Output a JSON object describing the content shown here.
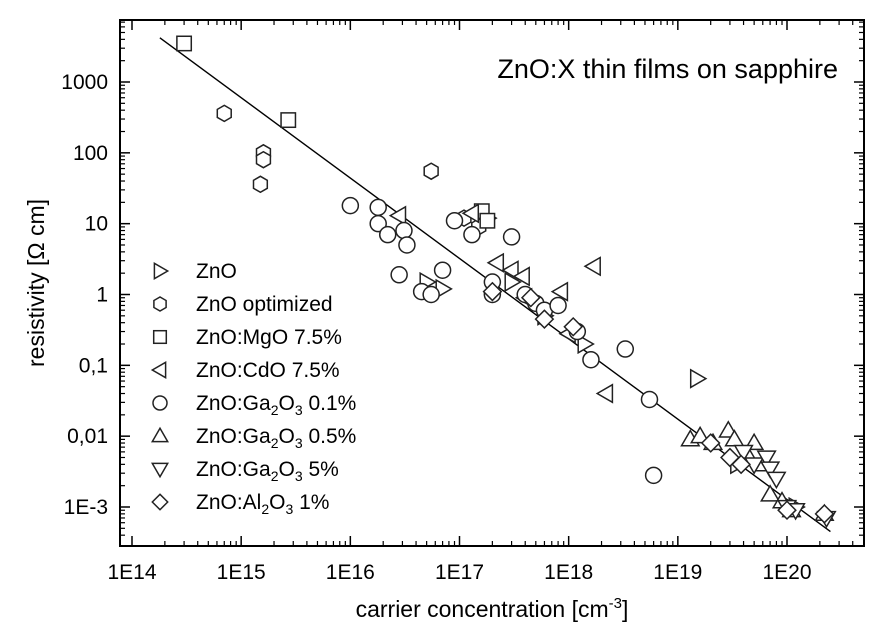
{
  "chart_data": {
    "type": "scatter",
    "title": "ZnO:X thin films on sapphire",
    "xlabel": "carrier concentration [cm",
    "xlabel_sup": "-3",
    "xlabel_end": "]",
    "ylabel": "resistivity [Ω cm]",
    "x_scale": "log",
    "y_scale": "log",
    "xlim": [
      100000000000000.0,
      3.5e+20
    ],
    "ylim": [
      0.0004,
      5000
    ],
    "x_ticks": [
      {
        "value": 100000000000000.0,
        "label": "1E14"
      },
      {
        "value": 1000000000000000.0,
        "label": "1E15"
      },
      {
        "value": 1e+16,
        "label": "1E16"
      },
      {
        "value": 1e+17,
        "label": "1E17"
      },
      {
        "value": 1e+18,
        "label": "1E18"
      },
      {
        "value": 1e+19,
        "label": "1E19"
      },
      {
        "value": 1e+20,
        "label": "1E20"
      }
    ],
    "y_ticks": [
      {
        "value": 1000,
        "label": "1000"
      },
      {
        "value": 100,
        "label": "100"
      },
      {
        "value": 10,
        "label": "10"
      },
      {
        "value": 1,
        "label": "1"
      },
      {
        "value": 0.1,
        "label": "0,1"
      },
      {
        "value": 0.01,
        "label": "0,01"
      },
      {
        "value": 0.001,
        "label": "1E-3"
      }
    ],
    "legend_position": "left",
    "fit_line": {
      "x": [
        180000000000000.0,
        2.5e+20
      ],
      "y": [
        4200,
        0.00045
      ]
    },
    "series": [
      {
        "name": "ZnO",
        "label_parts": [
          {
            "t": "ZnO"
          }
        ],
        "marker": "triangle-right",
        "points": [
          [
            5e+16,
            1.5
          ],
          [
            7e+16,
            1.2
          ],
          [
            1.8e+17,
            12
          ],
          [
            3e+17,
            1.5
          ],
          [
            6e+17,
            0.5
          ],
          [
            1.4e+18,
            0.2
          ],
          [
            1.5e+19,
            0.065
          ],
          [
            3.5e+19,
            0.004
          ],
          [
            1.2e+20,
            0.001
          ]
        ]
      },
      {
        "name": "ZnO optimized",
        "label_parts": [
          {
            "t": "ZnO optimized"
          }
        ],
        "marker": "hexagon",
        "points": [
          [
            700000000000000.0,
            360
          ],
          [
            1600000000000000.0,
            100
          ],
          [
            1600000000000000.0,
            80
          ],
          [
            1500000000000000.0,
            36
          ],
          [
            5.5e+16,
            55
          ],
          [
            1.1e+17,
            12
          ],
          [
            1.5e+17,
            9
          ]
        ]
      },
      {
        "name": "ZnO:MgO 7.5%",
        "label_parts": [
          {
            "t": "ZnO:MgO 7.5%"
          }
        ],
        "marker": "square",
        "points": [
          [
            300000000000000.0,
            3500
          ],
          [
            2700000000000000.0,
            290
          ],
          [
            1.6e+17,
            15
          ],
          [
            1.8e+17,
            11
          ]
        ]
      },
      {
        "name": "ZnO:CdO 7.5%",
        "label_parts": [
          {
            "t": "ZnO:CdO 7.5%"
          }
        ],
        "marker": "triangle-left",
        "points": [
          [
            2.8e+16,
            13
          ],
          [
            1.3e+17,
            14
          ],
          [
            2.2e+17,
            2.8
          ],
          [
            3e+17,
            2.2
          ],
          [
            3.8e+17,
            1.8
          ],
          [
            4e+17,
            0.9
          ],
          [
            8.5e+17,
            1.1
          ],
          [
            1.7e+18,
            2.5
          ],
          [
            2.2e+18,
            0.04
          ],
          [
            1e+18,
            0.28
          ]
        ]
      },
      {
        "name": "ZnO:Ga2O3 0.1%",
        "label_parts": [
          {
            "t": "ZnO:Ga"
          },
          {
            "t": "2",
            "sub": true
          },
          {
            "t": "O"
          },
          {
            "t": "3",
            "sub": true
          },
          {
            "t": " 0.1%"
          }
        ],
        "marker": "circle",
        "points": [
          [
            1e+16,
            18
          ],
          [
            1.8e+16,
            17
          ],
          [
            1.8e+16,
            10
          ],
          [
            2.2e+16,
            7
          ],
          [
            3.1e+16,
            8
          ],
          [
            3.3e+16,
            5
          ],
          [
            2.8e+16,
            1.9
          ],
          [
            4.5e+16,
            1.1
          ],
          [
            5.5e+16,
            1
          ],
          [
            7e+16,
            2.2
          ],
          [
            9e+16,
            11
          ],
          [
            1.3e+17,
            7
          ],
          [
            2e+17,
            1.5
          ],
          [
            2e+17,
            1
          ],
          [
            3e+17,
            6.5
          ],
          [
            4e+17,
            1
          ],
          [
            5e+17,
            0.75
          ],
          [
            6e+17,
            0.6
          ],
          [
            8e+17,
            0.7
          ],
          [
            1.2e+18,
            0.3
          ],
          [
            1.6e+18,
            0.12
          ],
          [
            3.3e+18,
            0.17
          ],
          [
            5.5e+18,
            0.033
          ],
          [
            6e+18,
            0.0028
          ]
        ]
      },
      {
        "name": "ZnO:Ga2O3 0.5%",
        "label_parts": [
          {
            "t": "ZnO:Ga"
          },
          {
            "t": "2",
            "sub": true
          },
          {
            "t": "O"
          },
          {
            "t": "3",
            "sub": true
          },
          {
            "t": " 0.5%"
          }
        ],
        "marker": "triangle-up",
        "points": [
          [
            1.3e+19,
            0.009
          ],
          [
            1.6e+19,
            0.01
          ],
          [
            2.1e+19,
            0.008
          ],
          [
            2.9e+19,
            0.012
          ],
          [
            3.3e+19,
            0.009
          ],
          [
            4.5e+19,
            0.005
          ],
          [
            5e+19,
            0.008
          ],
          [
            6e+19,
            0.004
          ],
          [
            7e+19,
            0.0015
          ],
          [
            9e+19,
            0.0012
          ],
          [
            1.1e+20,
            0.0009
          ],
          [
            2.2e+20,
            0.0008
          ]
        ]
      },
      {
        "name": "ZnO:Ga2O3 5%",
        "label_parts": [
          {
            "t": "ZnO:Ga"
          },
          {
            "t": "2",
            "sub": true
          },
          {
            "t": "O"
          },
          {
            "t": "3",
            "sub": true
          },
          {
            "t": " 5%"
          }
        ],
        "marker": "triangle-down",
        "points": [
          [
            4e+19,
            0.006
          ],
          [
            5e+19,
            0.004
          ],
          [
            6.5e+19,
            0.005
          ],
          [
            7e+19,
            0.0035
          ],
          [
            8e+19,
            0.0025
          ],
          [
            1e+20,
            0.001
          ],
          [
            1.2e+20,
            0.0009
          ],
          [
            2.3e+20,
            0.0007
          ]
        ]
      },
      {
        "name": "ZnO:Al2O3 1%",
        "label_parts": [
          {
            "t": "ZnO:Al"
          },
          {
            "t": "2",
            "sub": true
          },
          {
            "t": "O"
          },
          {
            "t": "3",
            "sub": true
          },
          {
            "t": " 1%"
          }
        ],
        "marker": "diamond",
        "points": [
          [
            2e+17,
            1.1
          ],
          [
            4.5e+17,
            0.9
          ],
          [
            6e+17,
            0.45
          ],
          [
            1.1e+18,
            0.35
          ],
          [
            2e+19,
            0.008
          ],
          [
            3e+19,
            0.005
          ],
          [
            3.8e+19,
            0.004
          ],
          [
            1e+20,
            0.0009
          ],
          [
            2.2e+20,
            0.0008
          ]
        ]
      }
    ]
  }
}
